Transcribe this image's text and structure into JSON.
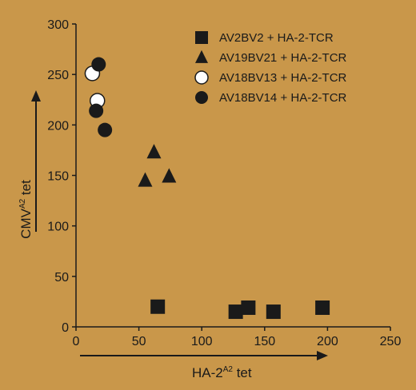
{
  "chart_data": {
    "type": "scatter",
    "title": "",
    "xlabel": "HA-2",
    "xlabel_superscript": "A2",
    "xlabel_suffix": " tet",
    "ylabel": "CMV",
    "ylabel_superscript": "A2",
    "ylabel_suffix": " tet",
    "xlim": [
      0,
      250
    ],
    "ylim": [
      0,
      300
    ],
    "x_ticks": [
      0,
      50,
      100,
      150,
      200,
      250
    ],
    "y_ticks": [
      0,
      50,
      100,
      150,
      200,
      250,
      300
    ],
    "grid": false,
    "legend_position": "top-right",
    "series": [
      {
        "name": "AV2BV2 + HA-2-TCR",
        "marker": "square",
        "points": [
          [
            65,
            20
          ],
          [
            127,
            15
          ],
          [
            137,
            19
          ],
          [
            157,
            15
          ],
          [
            196,
            19
          ]
        ]
      },
      {
        "name": "AV19BV21 + HA-2-TCR",
        "marker": "triangle",
        "points": [
          [
            55,
            145
          ],
          [
            62,
            173
          ],
          [
            74,
            149
          ]
        ]
      },
      {
        "name": "AV18BV13 + HA-2-TCR",
        "marker": "open-circle",
        "points": [
          [
            13,
            251
          ],
          [
            17,
            224
          ]
        ]
      },
      {
        "name": "AV18BV14 + HA-2-TCR",
        "marker": "filled-circle",
        "points": [
          [
            18,
            260
          ],
          [
            16,
            214
          ],
          [
            23,
            195
          ]
        ]
      }
    ]
  },
  "colors": {
    "background": "#c9974a",
    "ink": "#1a1a1a",
    "open_marker_fill": "#ffffff"
  }
}
